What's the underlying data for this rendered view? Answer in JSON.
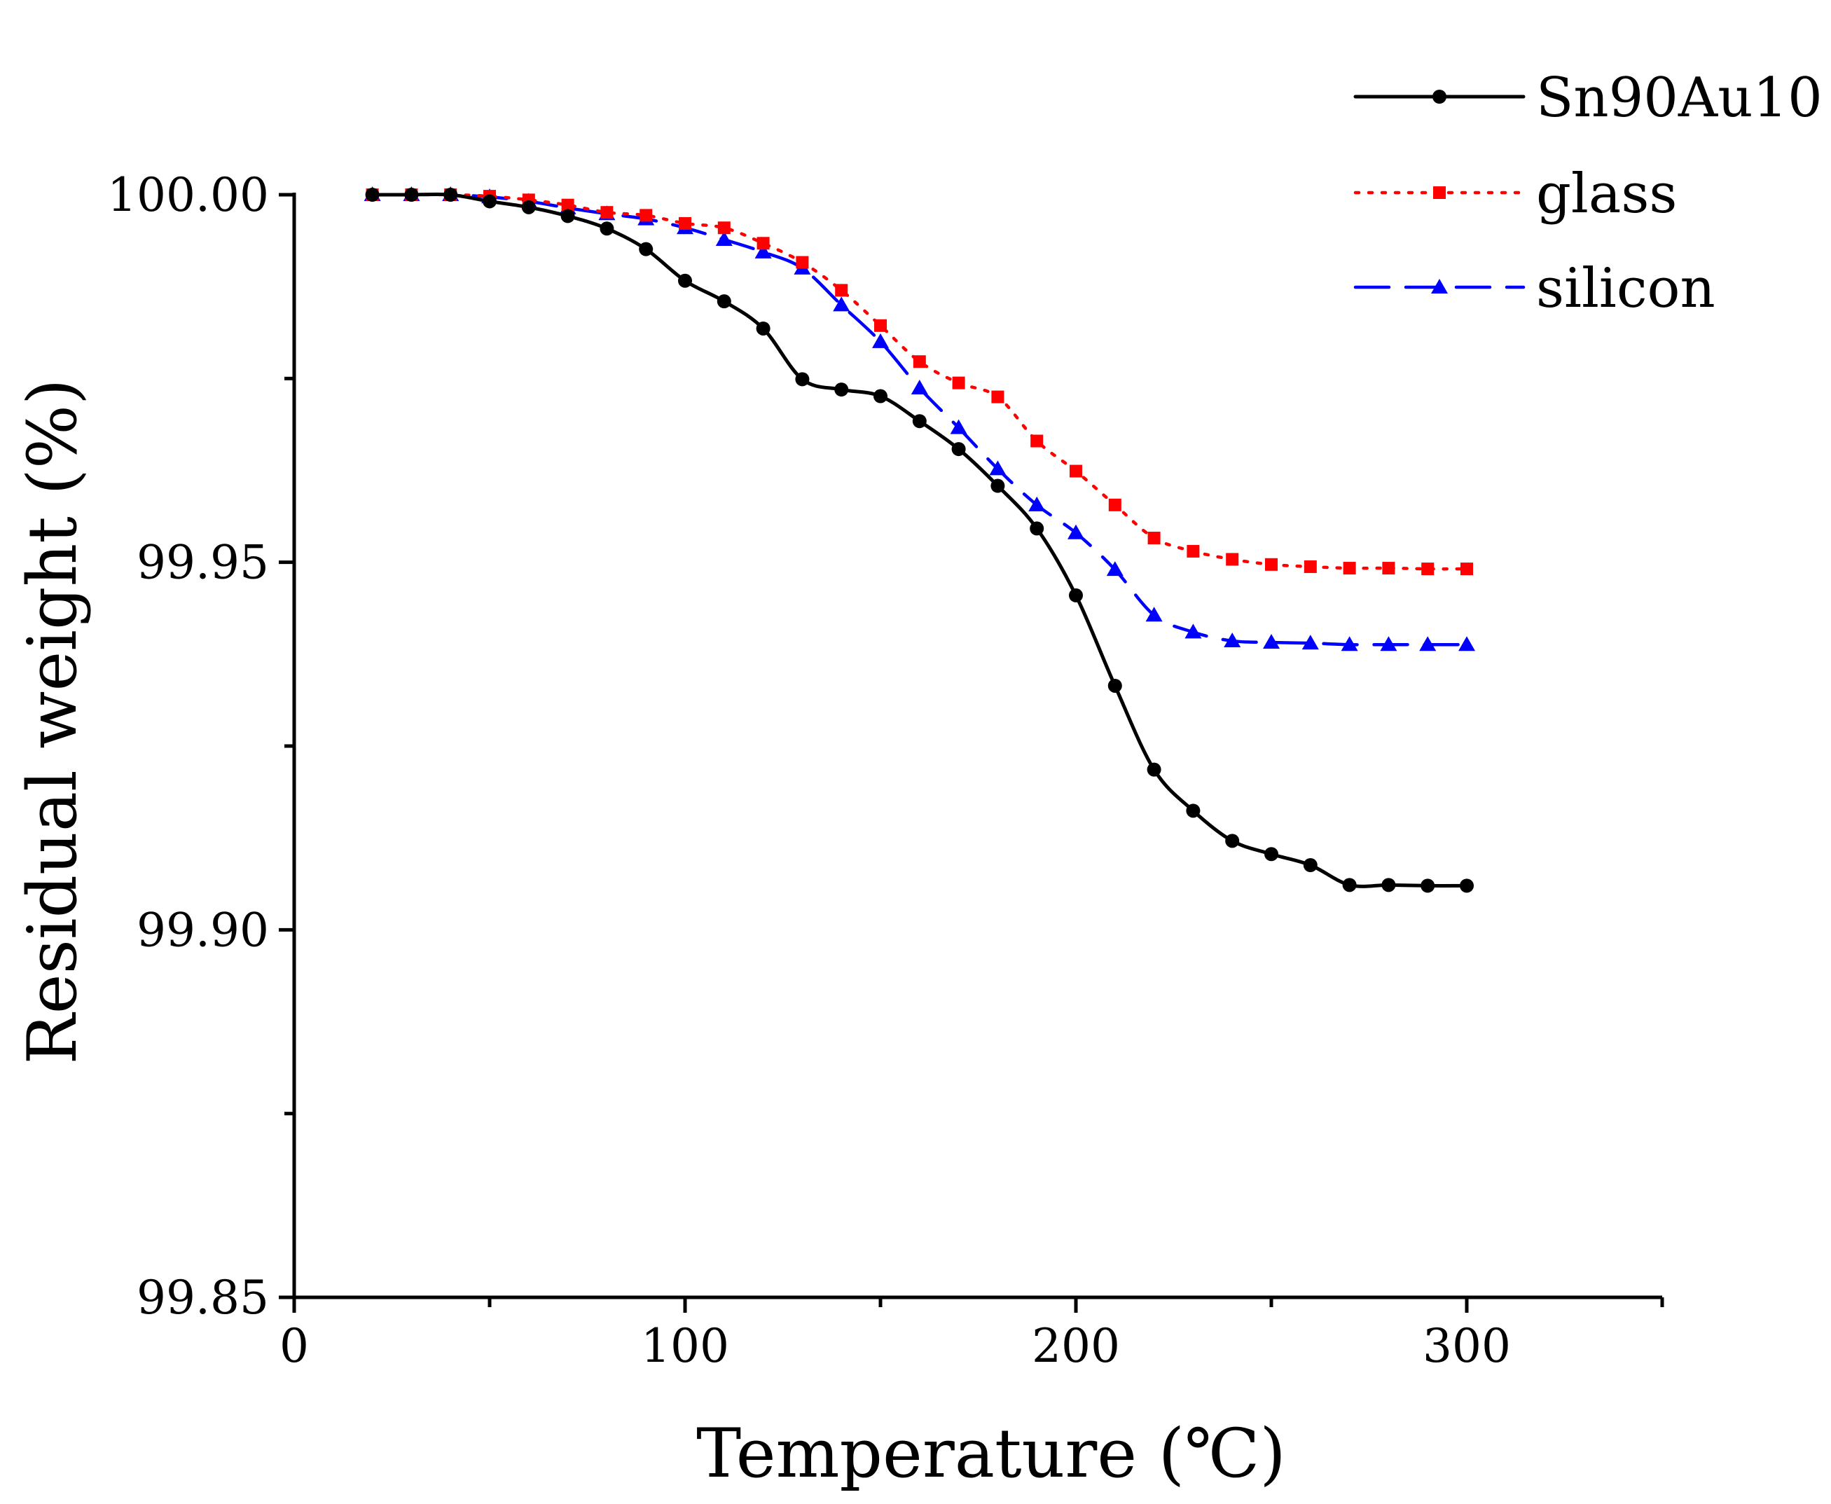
{
  "chart_data": {
    "type": "line",
    "title": "",
    "xlabel": "Temperature (℃)",
    "ylabel": "Residual weight (%)",
    "xlim": [
      0,
      350
    ],
    "ylim": [
      99.85,
      100.0
    ],
    "xticks": [
      0,
      100,
      200,
      300
    ],
    "xtick_labels": [
      "0",
      "100",
      "200",
      "300"
    ],
    "yticks": [
      99.85,
      99.9,
      99.95,
      100.0
    ],
    "ytick_labels": [
      "99.85",
      "99.90",
      "99.95",
      "100.00"
    ],
    "grid": false,
    "legend_position": "top-right",
    "x": [
      20,
      30,
      40,
      50,
      60,
      70,
      80,
      90,
      100,
      110,
      120,
      130,
      140,
      150,
      160,
      170,
      180,
      190,
      200,
      210,
      220,
      230,
      240,
      250,
      260,
      270,
      280,
      290,
      300
    ],
    "series": [
      {
        "name": "Sn90Au10",
        "color": "#000000",
        "line_style": "solid",
        "marker": "circle",
        "values": [
          100.0,
          100.0,
          100.0,
          99.9991,
          99.9983,
          99.9971,
          99.9954,
          99.9926,
          99.9883,
          99.9855,
          99.9818,
          99.9749,
          99.9735,
          99.9726,
          99.9692,
          99.9654,
          99.9604,
          99.9546,
          99.9455,
          99.9332,
          99.9218,
          99.9162,
          99.9121,
          99.9103,
          99.9088,
          99.9061,
          99.9061,
          99.906,
          99.906
        ]
      },
      {
        "name": "glass",
        "color": "#ff0000",
        "line_style": "dotted",
        "marker": "square",
        "values": [
          100.0,
          100.0,
          100.0,
          99.9998,
          99.9993,
          99.9986,
          99.9976,
          99.9972,
          99.9961,
          99.9955,
          99.9934,
          99.9908,
          99.987,
          99.9822,
          99.9773,
          99.9744,
          99.9725,
          99.9665,
          99.9624,
          99.9578,
          99.9533,
          99.9515,
          99.9504,
          99.9497,
          99.9494,
          99.9492,
          99.9492,
          99.9491,
          99.9491
        ]
      },
      {
        "name": "silicon",
        "color": "#0000ff",
        "line_style": "dashed",
        "marker": "triangle",
        "values": [
          100.0,
          100.0,
          100.0,
          99.9997,
          99.9991,
          99.9982,
          99.9974,
          99.9967,
          99.9955,
          99.9939,
          99.9922,
          99.99,
          99.985,
          99.98,
          99.9737,
          99.9683,
          99.9627,
          99.9578,
          99.954,
          99.949,
          99.9428,
          99.9405,
          99.9393,
          99.9391,
          99.939,
          99.9388,
          99.9388,
          99.9388,
          99.9388
        ]
      }
    ]
  }
}
